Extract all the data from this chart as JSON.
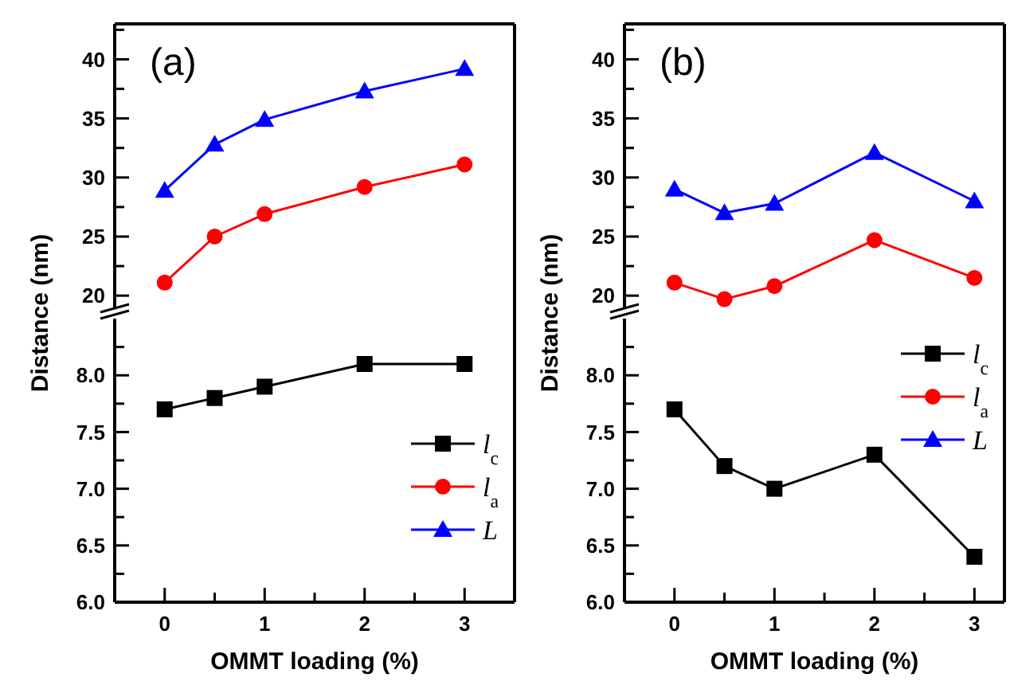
{
  "chart_data": [
    {
      "type": "line",
      "title": "(a)",
      "ylabel": "Distance (nm)",
      "x": [
        0,
        0.5,
        1,
        2,
        3
      ],
      "xlim": [
        -0.5,
        3.5
      ],
      "ylim": [
        19,
        43
      ],
      "yticks": [
        20,
        {
          "value": 22.5,
          "label": null
        },
        25,
        {
          "value": 27.5,
          "label": null
        },
        30,
        {
          "value": 32.5,
          "label": null
        },
        35,
        {
          "value": 37.5,
          "label": null
        },
        40,
        {
          "value": 42.5,
          "label": null
        }
      ],
      "tick_labels": "y",
      "legend": "right",
      "line_style": "solid",
      "series": [
        {
          "name": "l$_{a}$",
          "color": "#ff0000",
          "marker": "circle",
          "values": [
            21.1,
            25,
            26.9,
            29.2,
            31.1
          ]
        },
        {
          "name": "L",
          "color": "#0000ff",
          "marker": "triangle",
          "values": [
            28.9,
            32.8,
            34.9,
            37.3,
            39.2
          ]
        }
      ]
    },
    {
      "type": "line",
      "xlabel": "OMMT loading (%)",
      "x": [
        0,
        0.5,
        1,
        2,
        3
      ],
      "xlim": [
        -0.5,
        3.5
      ],
      "ylim": [
        6,
        8.5
      ],
      "xticks": [
        0,
        {
          "value": 0.5,
          "label": null
        },
        1,
        {
          "value": 1.5,
          "label": null
        },
        2,
        {
          "value": 2.5,
          "label": null
        },
        3
      ],
      "yticks": [
        {
          "value": 6,
          "label": "6.0"
        },
        {
          "value": 6.25,
          "label": null
        },
        {
          "value": 6.5,
          "label": "6.5"
        },
        {
          "value": 6.75,
          "label": null
        },
        {
          "value": 7,
          "label": "7.0"
        },
        {
          "value": 7.25,
          "label": null
        },
        {
          "value": 7.5,
          "label": "7.5"
        },
        {
          "value": 7.75,
          "label": null
        },
        {
          "value": 8,
          "label": "8.0"
        },
        {
          "value": 8.25,
          "label": null
        }
      ],
      "legend": "right",
      "line_style": "solid",
      "series": [
        {
          "name": "l$_{c}$",
          "color": "#000000",
          "marker": "square",
          "values": [
            7.7,
            7.8,
            7.9,
            8.1,
            8.1
          ]
        }
      ]
    },
    {
      "type": "line",
      "title": "(b)",
      "ylabel": "Distance (nm)",
      "x": [
        0,
        0.5,
        1,
        2,
        3
      ],
      "xlim": [
        -0.5,
        3.3
      ],
      "ylim": [
        19,
        43
      ],
      "yticks": [
        20,
        {
          "value": 22.5,
          "label": null
        },
        25,
        {
          "value": 27.5,
          "label": null
        },
        30,
        {
          "value": 32.5,
          "label": null
        },
        35,
        {
          "value": 37.5,
          "label": null
        },
        40,
        {
          "value": 42.5,
          "label": null
        }
      ],
      "tick_labels": "y",
      "legend": "bottom right",
      "line_style": "solid",
      "series": [
        {
          "name": "l$_{a}$",
          "color": "#ff0000",
          "marker": "circle",
          "values": [
            21.1,
            19.7,
            20.8,
            24.7,
            21.5
          ]
        },
        {
          "name": "L",
          "color": "#0000ff",
          "marker": "triangle",
          "values": [
            29,
            27,
            27.8,
            32.1,
            28
          ]
        }
      ]
    },
    {
      "type": "line",
      "xlabel": "OMMT loading (%)",
      "x": [
        0,
        0.5,
        1,
        2,
        3
      ],
      "xlim": [
        -0.5,
        3.3
      ],
      "ylim": [
        6,
        8.5
      ],
      "xticks": [
        0,
        {
          "value": 0.5,
          "label": null
        },
        1,
        {
          "value": 1.5,
          "label": null
        },
        2,
        {
          "value": 2.5,
          "label": null
        },
        3
      ],
      "yticks": [
        {
          "value": 6,
          "label": "6.0"
        },
        {
          "value": 6.25,
          "label": null
        },
        {
          "value": 6.5,
          "label": "6.5"
        },
        {
          "value": 6.75,
          "label": null
        },
        {
          "value": 7,
          "label": "7.0"
        },
        {
          "value": 7.25,
          "label": null
        },
        {
          "value": 7.5,
          "label": "7.5"
        },
        {
          "value": 7.75,
          "label": null
        },
        {
          "value": 8,
          "label": "8.0"
        },
        {
          "value": 8.25,
          "label": null
        }
      ],
      "legend": "top right",
      "line_style": "solid",
      "series": [
        {
          "name": "l$_{c}$",
          "color": "#000000",
          "marker": "square",
          "values": [
            7.7,
            7.2,
            7.0,
            7.3,
            6.4
          ]
        }
      ]
    }
  ]
}
